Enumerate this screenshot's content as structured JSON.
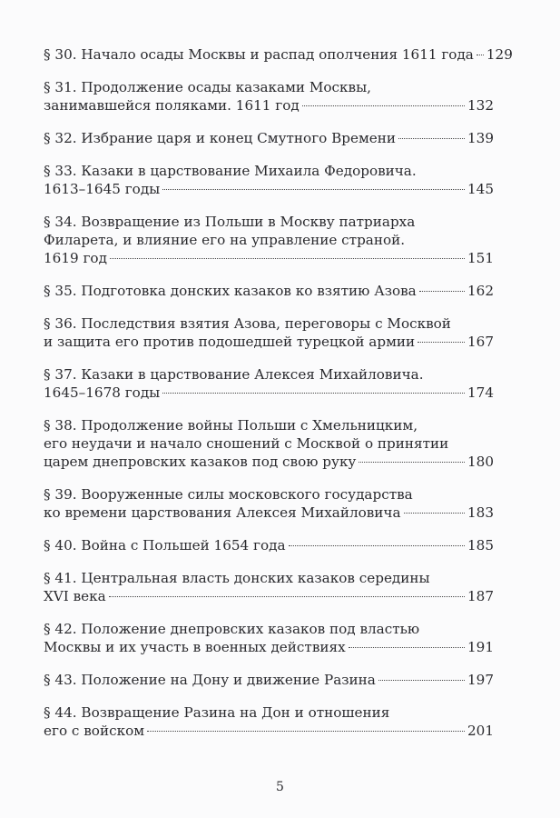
{
  "entries": [
    {
      "lines": [
        "§ 30. Начало осады Москвы и распад ополчения 1611 года"
      ],
      "page": "129"
    },
    {
      "lines": [
        "§ 31. Продолжение осады казаками Москвы,",
        "занимавшейся поляками. 1611 год"
      ],
      "page": "132"
    },
    {
      "lines": [
        "§ 32. Избрание царя и конец Смутного Времени"
      ],
      "page": "139"
    },
    {
      "lines": [
        "§ 33. Казаки в царствование Михаила Федоровича.",
        "1613–1645 годы"
      ],
      "page": "145"
    },
    {
      "lines": [
        "§ 34. Возвращение из Польши в Москву патриарха",
        "Филарета, и влияние его на управление страной.",
        "1619 год"
      ],
      "page": "151"
    },
    {
      "lines": [
        "§ 35. Подготовка донских казаков ко взятию Азова"
      ],
      "page": "162"
    },
    {
      "lines": [
        "§ 36. Последствия взятия Азова, переговоры с Москвой",
        "и защита его против подошедшей турецкой армии"
      ],
      "page": "167"
    },
    {
      "lines": [
        "§ 37. Казаки в царствование Алексея Михайловича.",
        "1645–1678 годы"
      ],
      "page": "174"
    },
    {
      "lines": [
        "§ 38. Продолжение войны Польши с Хмельницким,",
        "его неудачи и начало сношений с Москвой о принятии",
        "царем днепровских казаков под свою руку"
      ],
      "page": "180"
    },
    {
      "lines": [
        "§ 39. Вооруженные силы московского государства",
        "ко времени царствования Алексея Михайловича"
      ],
      "page": "183"
    },
    {
      "lines": [
        "§ 40. Война с Польшей 1654 года"
      ],
      "page": "185"
    },
    {
      "lines": [
        "§ 41. Центральная власть донских казаков середины",
        "XVI века"
      ],
      "page": "187"
    },
    {
      "lines": [
        "§ 42. Положение днепровских казаков под властью",
        "Москвы и их участь в военных действиях"
      ],
      "page": "191"
    },
    {
      "lines": [
        "§ 43. Положение на Дону и движение Разина"
      ],
      "page": "197"
    },
    {
      "lines": [
        "§ 44. Возвращение Разина на Дон и отношения",
        "его с войском"
      ],
      "page": "201"
    }
  ],
  "folio": "5"
}
